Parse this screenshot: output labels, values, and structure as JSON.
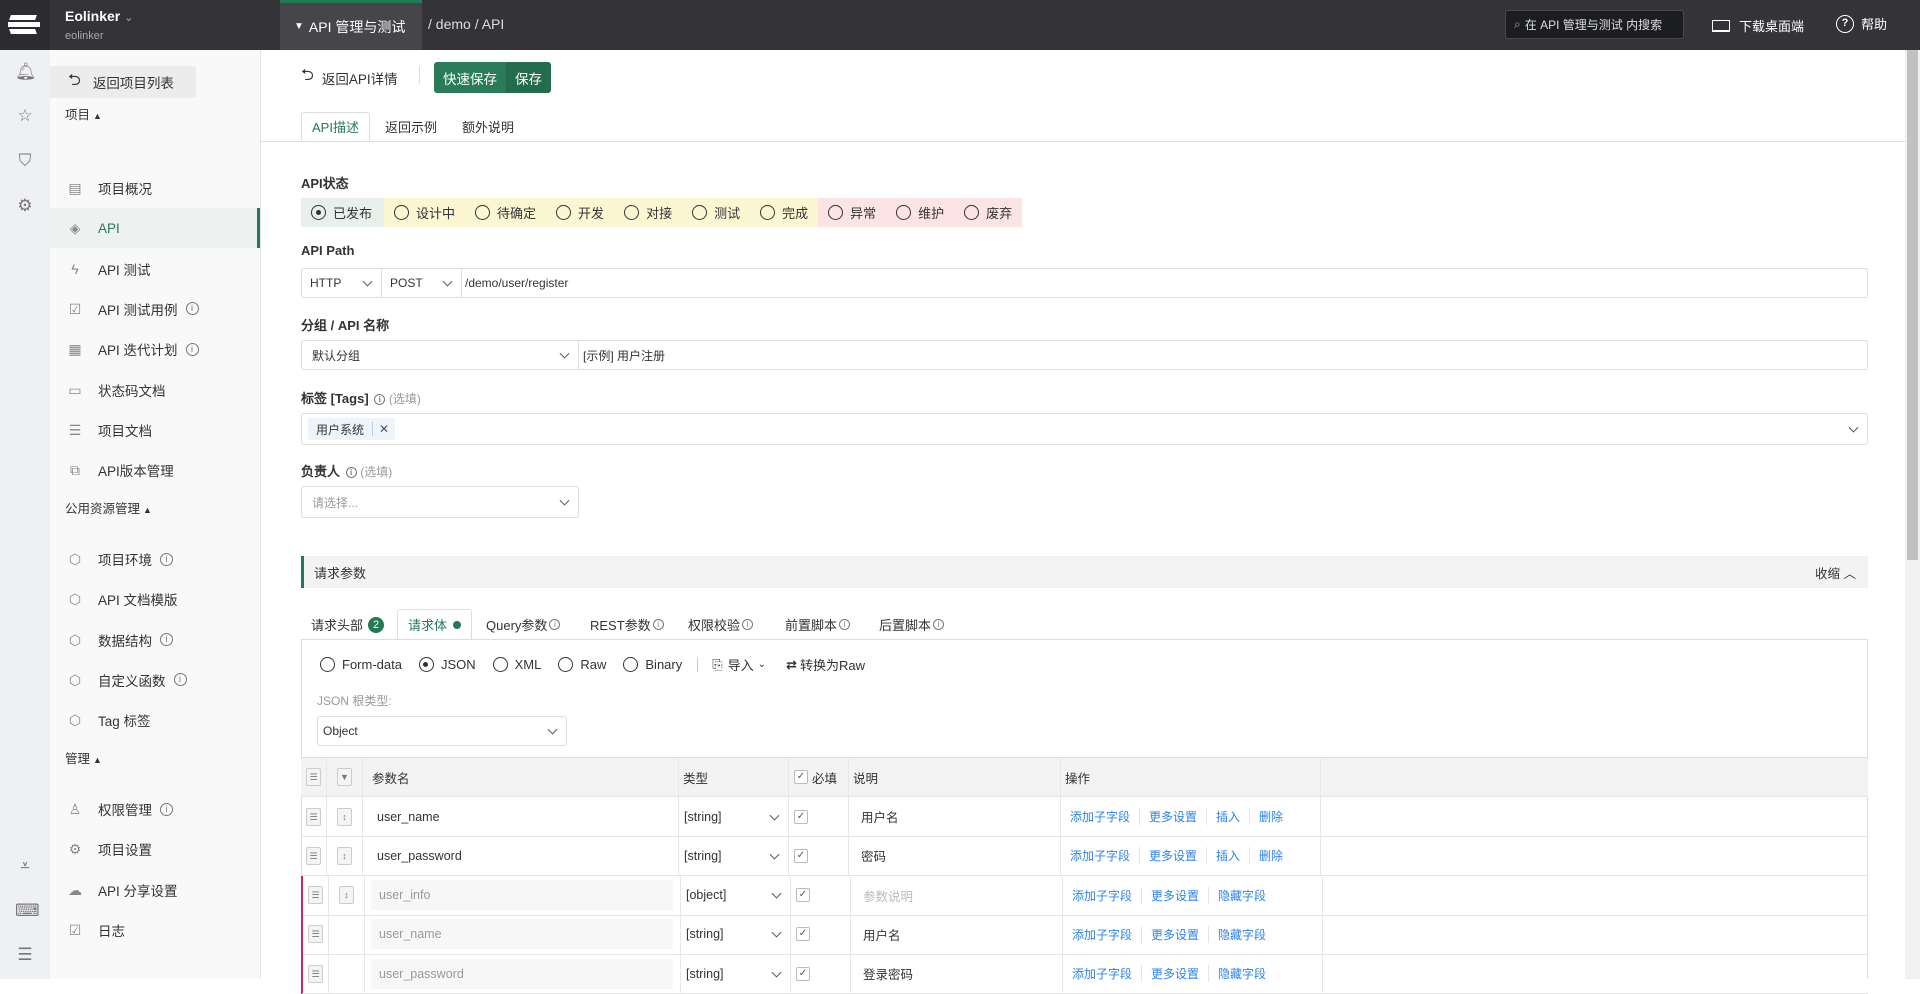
{
  "topbar": {
    "brand": "Eolinker",
    "workspace": "eolinker",
    "module_tab": "API 管理与测试",
    "breadcrumb": "/ demo / API",
    "search_placeholder": "在 API 管理与测试 内搜索",
    "download": "下载桌面端",
    "help": "帮助",
    "accent": "#237a55"
  },
  "sidebar": {
    "back": "返回项目列表",
    "groups": [
      {
        "title": "项目",
        "items": [
          {
            "label": "项目概况",
            "icon": "dashboard-icon"
          },
          {
            "label": "API",
            "icon": "api-icon",
            "active": true
          },
          {
            "label": "API 测试",
            "icon": "bolt-icon"
          },
          {
            "label": "API 测试用例",
            "icon": "clipboard-icon",
            "info": true
          },
          {
            "label": "API 迭代计划",
            "icon": "calendar-icon",
            "info": true
          },
          {
            "label": "状态码文档",
            "icon": "doc-icon"
          },
          {
            "label": "项目文档",
            "icon": "list-doc-icon"
          },
          {
            "label": "API版本管理",
            "icon": "version-icon"
          }
        ]
      },
      {
        "title": "公用资源管理",
        "items": [
          {
            "label": "项目环境",
            "icon": "cube-icon",
            "info": true
          },
          {
            "label": "API 文档模版",
            "icon": "cube-icon"
          },
          {
            "label": "数据结构",
            "icon": "cube-icon",
            "info": true
          },
          {
            "label": "自定义函数",
            "icon": "cube-icon",
            "info": true
          },
          {
            "label": "Tag 标签",
            "icon": "cube-icon"
          }
        ]
      },
      {
        "title": "管理",
        "items": [
          {
            "label": "权限管理",
            "icon": "user-icon",
            "info": true
          },
          {
            "label": "项目设置",
            "icon": "gear-icon"
          },
          {
            "label": "API 分享设置",
            "icon": "cloud-icon"
          },
          {
            "label": "日志",
            "icon": "log-icon"
          }
        ]
      }
    ]
  },
  "toolbar": {
    "back": "返回API详情",
    "quick_save": "快速保存",
    "save": "保存"
  },
  "tabs": [
    "API描述",
    "返回示例",
    "额外说明"
  ],
  "form": {
    "status_label": "API状态",
    "statuses": [
      {
        "label": "已发布",
        "selected": true,
        "tone": "green"
      },
      {
        "label": "设计中",
        "tone": "yellow"
      },
      {
        "label": "待确定",
        "tone": "yellow"
      },
      {
        "label": "开发",
        "tone": "yellow"
      },
      {
        "label": "对接",
        "tone": "yellow"
      },
      {
        "label": "测试",
        "tone": "yellow"
      },
      {
        "label": "完成",
        "tone": "yellow"
      },
      {
        "label": "异常",
        "tone": "red"
      },
      {
        "label": "维护",
        "tone": "red"
      },
      {
        "label": "废弃",
        "tone": "red"
      }
    ],
    "path_label": "API Path",
    "protocol": "HTTP",
    "method": "POST",
    "path": "/demo/user/register",
    "group_label": "分组 / API 名称",
    "group": "默认分组",
    "name": "[示例] 用户注册",
    "tags_label": "标签 [Tags]",
    "optional": "(选填)",
    "tag": "用户系统",
    "owner_label": "负责人",
    "owner_placeholder": "请选择..."
  },
  "request": {
    "title": "请求参数",
    "collapse": "收缩",
    "tabs": [
      {
        "label": "请求头部",
        "badge": "2"
      },
      {
        "label": "请求体",
        "dot": true,
        "active": true
      },
      {
        "label": "Query参数",
        "info": true
      },
      {
        "label": "REST参数",
        "info": true
      },
      {
        "label": "权限校验",
        "info": true
      },
      {
        "label": "前置脚本",
        "info": true
      },
      {
        "label": "后置脚本",
        "info": true
      }
    ],
    "body_types": [
      {
        "label": "Form-data"
      },
      {
        "label": "JSON",
        "selected": true
      },
      {
        "label": "XML"
      },
      {
        "label": "Raw"
      },
      {
        "label": "Binary"
      }
    ],
    "import": "导入",
    "to_raw": "转换为Raw",
    "root_type_label": "JSON 根类型:",
    "root_type": "Object",
    "columns": {
      "name": "参数名",
      "type": "类型",
      "required": "必填",
      "desc": "说明",
      "ops": "操作"
    },
    "rows": [
      {
        "name": "user_name",
        "type": "[string]",
        "desc": "用户名",
        "ops": [
          "添加子字段",
          "更多设置",
          "插入",
          "删除"
        ]
      },
      {
        "name": "user_password",
        "type": "[string]",
        "desc": "密码",
        "ops": [
          "添加子字段",
          "更多设置",
          "插入",
          "删除"
        ]
      },
      {
        "name": "user_info",
        "type": "[object]",
        "desc": "参数说明",
        "desc_placeholder": true,
        "child": true,
        "ops": [
          "添加子字段",
          "更多设置",
          "隐藏字段"
        ]
      },
      {
        "name": "user_name",
        "type": "[string]",
        "desc": "用户名",
        "child": true,
        "nohandle": true,
        "ops": [
          "添加子字段",
          "更多设置",
          "隐藏字段"
        ]
      },
      {
        "name": "user_password",
        "type": "[string]",
        "desc": "登录密码",
        "child": true,
        "nohandle": true,
        "ops": [
          "添加子字段",
          "更多设置",
          "隐藏字段"
        ]
      }
    ]
  }
}
